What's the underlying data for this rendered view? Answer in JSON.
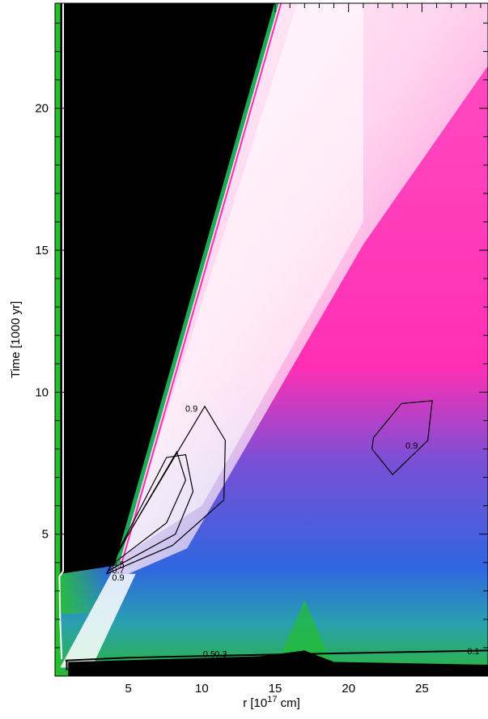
{
  "chart_data": {
    "type": "heatmap",
    "title": "",
    "xlabel": "r [10",
    "xlabel_exp": "17",
    "xlabel_unit": " cm]",
    "ylabel": "Time [1000 yr]",
    "xlim": [
      0,
      29.5
    ],
    "ylim": [
      0,
      23.7
    ],
    "x_ticks": [
      5,
      10,
      15,
      20,
      25
    ],
    "y_ticks": [
      5,
      10,
      15,
      20
    ],
    "x_tick_labels": [
      "5",
      "10",
      "15",
      "20",
      "25"
    ],
    "y_tick_labels": [
      "5",
      "10",
      "15",
      "20"
    ],
    "colors": {
      "unshocked": "#000000",
      "low": "#22c02a",
      "mid": "#2f5de0",
      "high": "#ff2fb4",
      "peak": "#ffffff",
      "front": "#1faa55"
    },
    "regions": [
      {
        "name": "ejecta-free wind (black)",
        "points": [
          [
            0.35,
            23.7
          ],
          [
            15.0,
            23.7
          ],
          [
            4.2,
            3.9
          ],
          [
            0.35,
            3.6
          ]
        ]
      },
      {
        "name": "base band (black)",
        "points": [
          [
            0.9,
            0.5
          ],
          [
            14,
            0.7
          ],
          [
            17,
            0.9
          ],
          [
            19,
            0.5
          ],
          [
            29.5,
            0.4
          ],
          [
            29.5,
            0
          ],
          [
            0.9,
            0
          ]
        ]
      }
    ],
    "contours": [
      {
        "level": 0.9,
        "label": "0.9",
        "points": [
          [
            3.5,
            3.6
          ],
          [
            8,
            4.6
          ],
          [
            11.5,
            6.2
          ],
          [
            11.6,
            8.3
          ],
          [
            10.2,
            9.5
          ],
          [
            5,
            5
          ],
          [
            3.5,
            3.6
          ]
        ]
      },
      {
        "level": 0.7,
        "label": "0.7",
        "points": [
          [
            3.6,
            3.7
          ],
          [
            8.2,
            5.0
          ],
          [
            9.4,
            6.5
          ],
          [
            8.9,
            7.8
          ],
          [
            7.6,
            7.7
          ],
          [
            3.6,
            3.7
          ]
        ]
      },
      {
        "level": 0.5,
        "label": "0.5",
        "points": [
          [
            3.8,
            3.9
          ],
          [
            7.6,
            5.4
          ],
          [
            8.9,
            6.9
          ],
          [
            8.3,
            7.9
          ],
          [
            5,
            5
          ],
          [
            3.8,
            3.9
          ]
        ]
      },
      {
        "level": 0.9,
        "label": "0.9",
        "points": [
          [
            21.7,
            8.4
          ],
          [
            23.6,
            9.6
          ],
          [
            25.7,
            9.7
          ],
          [
            25.4,
            8.3
          ],
          [
            23.0,
            7.1
          ],
          [
            21.6,
            8.0
          ],
          [
            21.7,
            8.4
          ]
        ]
      }
    ],
    "contour_labels": [
      {
        "text": "0.9",
        "x": 9.3,
        "y": 9.4
      },
      {
        "text": "0.9",
        "x": 24.3,
        "y": 8.1
      },
      {
        "text": "0.5",
        "x": 4.3,
        "y": 3.9
      },
      {
        "text": "0.7",
        "x": 4.3,
        "y": 3.7
      },
      {
        "text": "0.9",
        "x": 4.3,
        "y": 3.45
      },
      {
        "text": "0.5",
        "x": 10.5,
        "y": 0.75
      },
      {
        "text": "0.3",
        "x": 11.3,
        "y": 0.75
      },
      {
        "text": "0.1",
        "x": 28.5,
        "y": 0.85
      }
    ]
  }
}
